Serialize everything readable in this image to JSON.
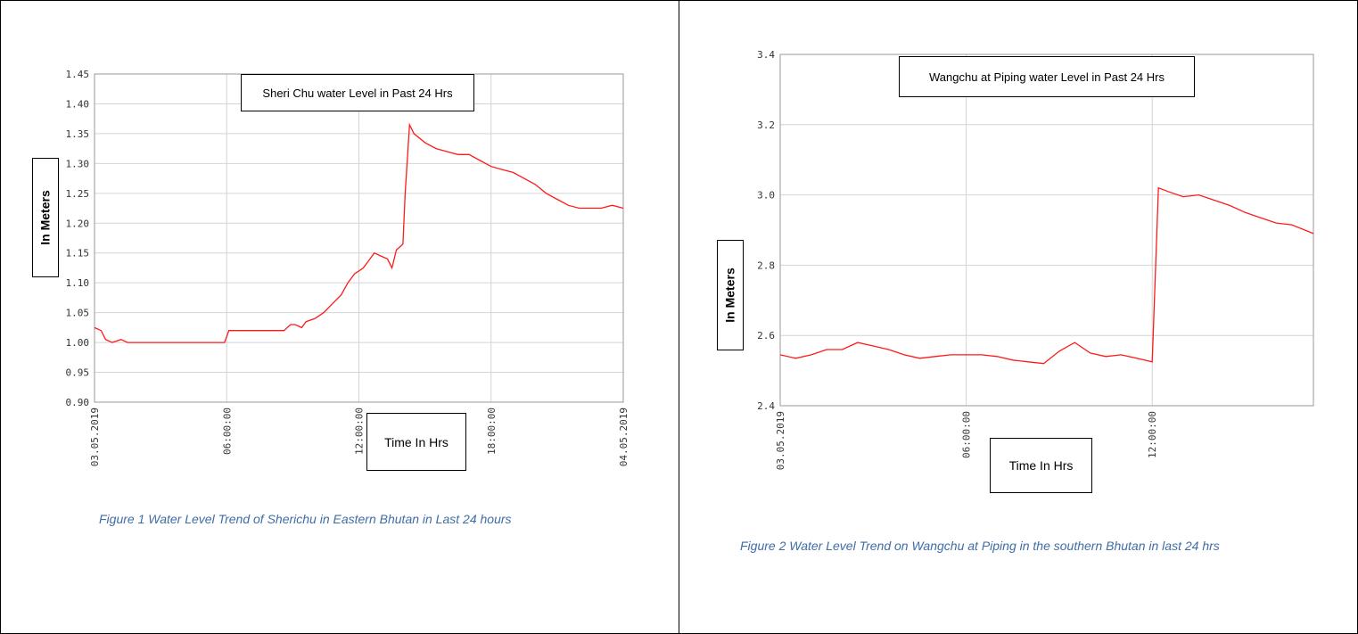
{
  "chart_data": [
    {
      "type": "line",
      "title": "Sheri Chu water Level in Past 24 Hrs",
      "xlabel": "Time In Hrs",
      "ylabel": "In Meters",
      "caption": "Figure 1 Water Level Trend of Sherichu in Eastern Bhutan in Last 24 hours",
      "x_ticks": [
        "03.05.2019",
        "06:00:00",
        "12:00:00",
        "18:00:00",
        "04.05.2019"
      ],
      "xlim": [
        0,
        24
      ],
      "y_ticks": [
        "0.90",
        "0.95",
        "1.00",
        "1.05",
        "1.10",
        "1.15",
        "1.20",
        "1.25",
        "1.30",
        "1.35",
        "1.40",
        "1.45"
      ],
      "ylim": [
        0.9,
        1.45
      ],
      "grid": true,
      "series": [
        {
          "color": "#ff1a1a",
          "x": [
            0,
            0.3,
            0.5,
            0.8,
            1.2,
            1.5,
            2,
            4,
            5.9,
            6.1,
            7,
            8,
            8.6,
            8.9,
            9.1,
            9.4,
            9.6,
            10,
            10.4,
            10.8,
            11.2,
            11.5,
            11.8,
            12.0,
            12.2,
            12.5,
            12.7,
            13.0,
            13.3,
            13.5,
            13.7,
            14.0,
            14.1,
            14.3,
            14.5,
            15,
            15.5,
            16,
            16.5,
            17,
            17.5,
            18,
            18.5,
            19,
            19.5,
            20,
            20.5,
            21,
            21.5,
            22,
            22.5,
            23,
            23.5,
            24
          ],
          "y": [
            1.025,
            1.02,
            1.005,
            1.0,
            1.005,
            1.0,
            1.0,
            1.0,
            1.0,
            1.02,
            1.02,
            1.02,
            1.02,
            1.03,
            1.03,
            1.025,
            1.035,
            1.04,
            1.05,
            1.065,
            1.08,
            1.1,
            1.115,
            1.12,
            1.125,
            1.14,
            1.15,
            1.145,
            1.14,
            1.125,
            1.155,
            1.165,
            1.25,
            1.365,
            1.35,
            1.335,
            1.325,
            1.32,
            1.315,
            1.315,
            1.305,
            1.295,
            1.29,
            1.285,
            1.275,
            1.265,
            1.25,
            1.24,
            1.23,
            1.225,
            1.225,
            1.225,
            1.23,
            1.225
          ]
        }
      ]
    },
    {
      "type": "line",
      "title": "Wangchu at Piping water Level in Past 24 Hrs",
      "xlabel": "Time In Hrs",
      "ylabel": "In Meters",
      "caption": "Figure 2 Water Level Trend on Wangchu at Piping in the southern Bhutan in last 24 hrs",
      "x_ticks": [
        "03.05.2019",
        "06:00:00",
        "12:00:00"
      ],
      "xlim": [
        0,
        17.2
      ],
      "y_ticks": [
        "2.4",
        "2.6",
        "2.8",
        "3.0",
        "3.2",
        "3.4"
      ],
      "ylim": [
        2.4,
        3.4
      ],
      "grid": true,
      "series": [
        {
          "color": "#ff1a1a",
          "x": [
            0,
            0.5,
            1,
            1.5,
            2,
            2.5,
            3,
            3.5,
            4,
            4.5,
            5,
            5.5,
            6,
            6.5,
            7,
            7.5,
            8,
            8.5,
            9,
            9.5,
            10,
            10.5,
            11,
            11.5,
            12,
            12.2,
            12.5,
            13,
            13.5,
            14,
            14.5,
            15,
            15.5,
            16,
            16.5,
            17.2
          ],
          "y": [
            2.545,
            2.535,
            2.545,
            2.56,
            2.56,
            2.58,
            2.57,
            2.56,
            2.545,
            2.535,
            2.54,
            2.545,
            2.545,
            2.545,
            2.54,
            2.53,
            2.525,
            2.52,
            2.555,
            2.58,
            2.55,
            2.54,
            2.545,
            2.535,
            2.525,
            3.02,
            3.01,
            2.995,
            3.0,
            2.985,
            2.97,
            2.95,
            2.935,
            2.92,
            2.915,
            2.89
          ]
        }
      ]
    }
  ]
}
